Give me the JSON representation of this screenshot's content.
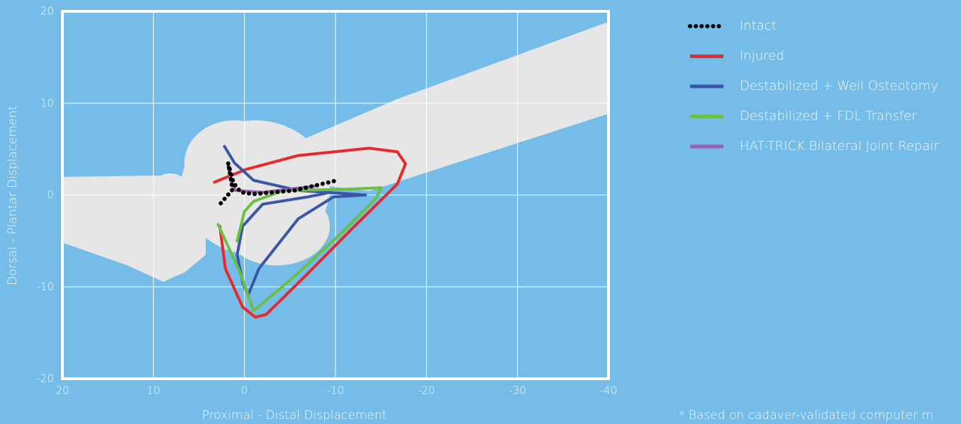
{
  "chart_data": {
    "type": "line",
    "x_label": "Proximal - Distal Displacement",
    "y_label": "Dorsal - Plantar Displacement",
    "footnote": "* Based on cadaver-validated computer m",
    "xlim": [
      20,
      -40
    ],
    "xticks": [
      20,
      10,
      0,
      -10,
      -20,
      -30,
      -40
    ],
    "ylim": [
      -20,
      20
    ],
    "yticks": [
      -20,
      -10,
      0,
      10,
      20
    ],
    "grid": true,
    "legend": "top-right",
    "series": [
      {
        "name": "Intact",
        "color": "#000000",
        "dashed": true,
        "x": [
          2.6,
          1.3,
          1.6,
          1.8,
          1.2,
          0.4,
          -1.0,
          -5.5,
          -10.2
        ],
        "values": [
          -0.9,
          0.6,
          2.4,
          3.5,
          1.3,
          0.3,
          0.1,
          0.5,
          1.6
        ]
      },
      {
        "name": "Injured",
        "color": "#e8282a",
        "x": [
          3.3,
          -0.2,
          -5.9,
          -13.7,
          -16.8,
          -17.7,
          -16.8,
          -12.1,
          -6.7,
          -2.4,
          -1.2,
          0.2,
          2.1,
          2.7
        ],
        "values": [
          1.4,
          2.8,
          4.3,
          5.1,
          4.7,
          3.4,
          1.2,
          -3.4,
          -8.8,
          -13.0,
          -13.3,
          -12.2,
          -8.0,
          -3.4
        ]
      },
      {
        "name": "Destabilized + Weil Osteotomy",
        "color": "#3c56a7",
        "x": [
          2.2,
          1.1,
          -1.0,
          -5.9,
          -13.3,
          -9.8,
          -5.9,
          -1.6,
          -0.4,
          0.2,
          0.8,
          0.2,
          -2.0,
          -7.0,
          -9.0
        ],
        "values": [
          5.3,
          3.5,
          1.6,
          0.5,
          0.0,
          -0.2,
          -2.6,
          -8.0,
          -10.9,
          -9.5,
          -6.5,
          -3.4,
          -1.0,
          -0.2,
          0.2
        ]
      },
      {
        "name": "Destabilized + FDL Transfer",
        "color": "#6bbf45",
        "x": [
          2.9,
          0.5,
          -1.0,
          -5.1,
          -10.6,
          -14.5,
          -15.0,
          -10.6,
          -4.3,
          -1.0,
          0.0,
          0.8
        ],
        "values": [
          -3.2,
          -8.4,
          -12.6,
          -9.2,
          -4.2,
          -0.3,
          0.8,
          0.6,
          0.5,
          -0.7,
          -1.8,
          -5.0
        ]
      },
      {
        "name": "HAT-TRICK Bilateral Joint Repair",
        "color": "#9b5fb0",
        "x": [
          1.8,
          1.5,
          1.0,
          -2.0,
          -8.0
        ],
        "values": [
          3.2,
          1.5,
          0.5,
          0.3,
          1.0
        ]
      }
    ]
  }
}
